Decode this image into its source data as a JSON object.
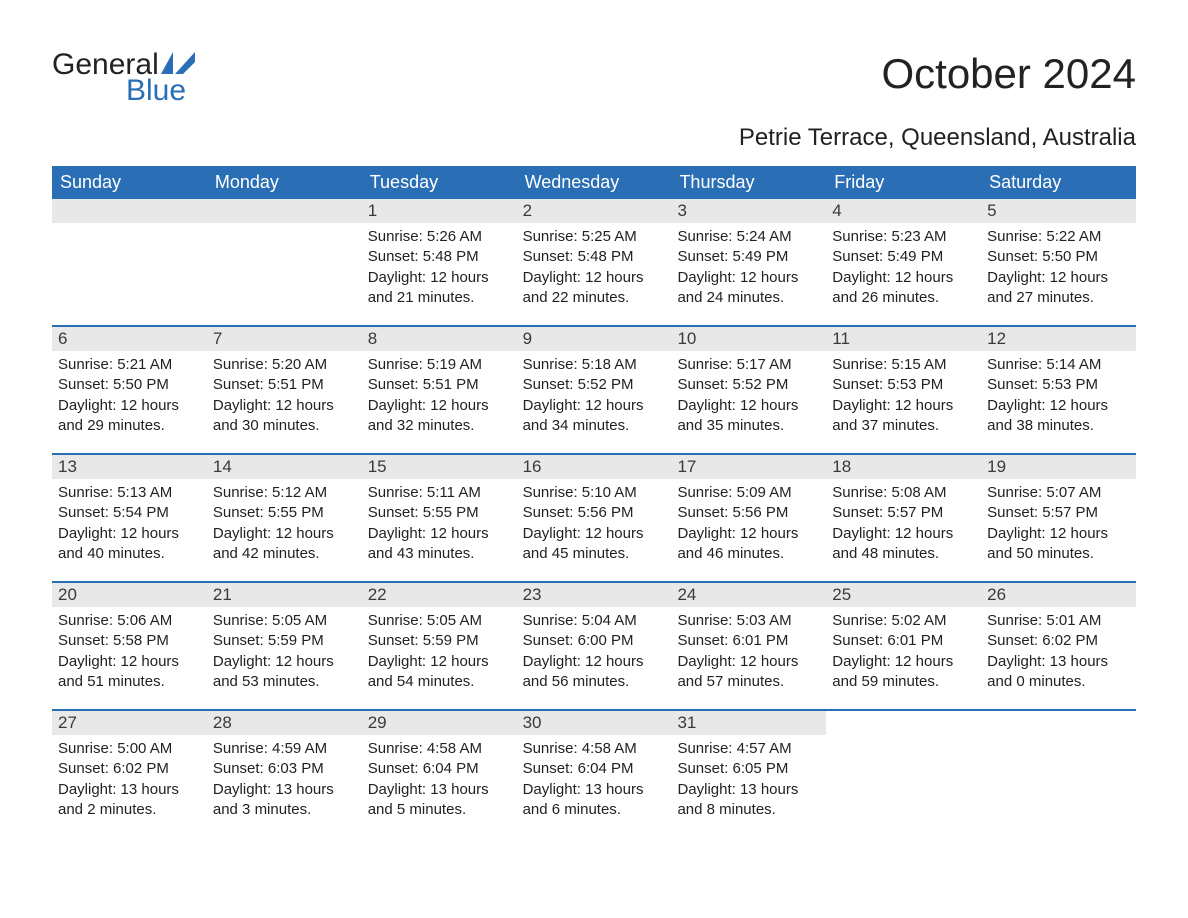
{
  "logo": {
    "line1": "General",
    "line2": "Blue"
  },
  "title": "October 2024",
  "subtitle": "Petrie Terrace, Queensland, Australia",
  "weekdays": [
    "Sunday",
    "Monday",
    "Tuesday",
    "Wednesday",
    "Thursday",
    "Friday",
    "Saturday"
  ],
  "colors": {
    "header_bg": "#2a6fb5",
    "header_text": "#ffffff",
    "daynum_bg": "#e8e8e8",
    "week_border": "#2a6fb5",
    "logo_blue": "#2a6fb5",
    "text": "#222222"
  },
  "calendar": {
    "type": "table",
    "weeks": [
      [
        {
          "day": "",
          "sunrise": "",
          "sunset": "",
          "daylight1": "",
          "daylight2": ""
        },
        {
          "day": "",
          "sunrise": "",
          "sunset": "",
          "daylight1": "",
          "daylight2": ""
        },
        {
          "day": "1",
          "sunrise": "Sunrise: 5:26 AM",
          "sunset": "Sunset: 5:48 PM",
          "daylight1": "Daylight: 12 hours",
          "daylight2": "and 21 minutes."
        },
        {
          "day": "2",
          "sunrise": "Sunrise: 5:25 AM",
          "sunset": "Sunset: 5:48 PM",
          "daylight1": "Daylight: 12 hours",
          "daylight2": "and 22 minutes."
        },
        {
          "day": "3",
          "sunrise": "Sunrise: 5:24 AM",
          "sunset": "Sunset: 5:49 PM",
          "daylight1": "Daylight: 12 hours",
          "daylight2": "and 24 minutes."
        },
        {
          "day": "4",
          "sunrise": "Sunrise: 5:23 AM",
          "sunset": "Sunset: 5:49 PM",
          "daylight1": "Daylight: 12 hours",
          "daylight2": "and 26 minutes."
        },
        {
          "day": "5",
          "sunrise": "Sunrise: 5:22 AM",
          "sunset": "Sunset: 5:50 PM",
          "daylight1": "Daylight: 12 hours",
          "daylight2": "and 27 minutes."
        }
      ],
      [
        {
          "day": "6",
          "sunrise": "Sunrise: 5:21 AM",
          "sunset": "Sunset: 5:50 PM",
          "daylight1": "Daylight: 12 hours",
          "daylight2": "and 29 minutes."
        },
        {
          "day": "7",
          "sunrise": "Sunrise: 5:20 AM",
          "sunset": "Sunset: 5:51 PM",
          "daylight1": "Daylight: 12 hours",
          "daylight2": "and 30 minutes."
        },
        {
          "day": "8",
          "sunrise": "Sunrise: 5:19 AM",
          "sunset": "Sunset: 5:51 PM",
          "daylight1": "Daylight: 12 hours",
          "daylight2": "and 32 minutes."
        },
        {
          "day": "9",
          "sunrise": "Sunrise: 5:18 AM",
          "sunset": "Sunset: 5:52 PM",
          "daylight1": "Daylight: 12 hours",
          "daylight2": "and 34 minutes."
        },
        {
          "day": "10",
          "sunrise": "Sunrise: 5:17 AM",
          "sunset": "Sunset: 5:52 PM",
          "daylight1": "Daylight: 12 hours",
          "daylight2": "and 35 minutes."
        },
        {
          "day": "11",
          "sunrise": "Sunrise: 5:15 AM",
          "sunset": "Sunset: 5:53 PM",
          "daylight1": "Daylight: 12 hours",
          "daylight2": "and 37 minutes."
        },
        {
          "day": "12",
          "sunrise": "Sunrise: 5:14 AM",
          "sunset": "Sunset: 5:53 PM",
          "daylight1": "Daylight: 12 hours",
          "daylight2": "and 38 minutes."
        }
      ],
      [
        {
          "day": "13",
          "sunrise": "Sunrise: 5:13 AM",
          "sunset": "Sunset: 5:54 PM",
          "daylight1": "Daylight: 12 hours",
          "daylight2": "and 40 minutes."
        },
        {
          "day": "14",
          "sunrise": "Sunrise: 5:12 AM",
          "sunset": "Sunset: 5:55 PM",
          "daylight1": "Daylight: 12 hours",
          "daylight2": "and 42 minutes."
        },
        {
          "day": "15",
          "sunrise": "Sunrise: 5:11 AM",
          "sunset": "Sunset: 5:55 PM",
          "daylight1": "Daylight: 12 hours",
          "daylight2": "and 43 minutes."
        },
        {
          "day": "16",
          "sunrise": "Sunrise: 5:10 AM",
          "sunset": "Sunset: 5:56 PM",
          "daylight1": "Daylight: 12 hours",
          "daylight2": "and 45 minutes."
        },
        {
          "day": "17",
          "sunrise": "Sunrise: 5:09 AM",
          "sunset": "Sunset: 5:56 PM",
          "daylight1": "Daylight: 12 hours",
          "daylight2": "and 46 minutes."
        },
        {
          "day": "18",
          "sunrise": "Sunrise: 5:08 AM",
          "sunset": "Sunset: 5:57 PM",
          "daylight1": "Daylight: 12 hours",
          "daylight2": "and 48 minutes."
        },
        {
          "day": "19",
          "sunrise": "Sunrise: 5:07 AM",
          "sunset": "Sunset: 5:57 PM",
          "daylight1": "Daylight: 12 hours",
          "daylight2": "and 50 minutes."
        }
      ],
      [
        {
          "day": "20",
          "sunrise": "Sunrise: 5:06 AM",
          "sunset": "Sunset: 5:58 PM",
          "daylight1": "Daylight: 12 hours",
          "daylight2": "and 51 minutes."
        },
        {
          "day": "21",
          "sunrise": "Sunrise: 5:05 AM",
          "sunset": "Sunset: 5:59 PM",
          "daylight1": "Daylight: 12 hours",
          "daylight2": "and 53 minutes."
        },
        {
          "day": "22",
          "sunrise": "Sunrise: 5:05 AM",
          "sunset": "Sunset: 5:59 PM",
          "daylight1": "Daylight: 12 hours",
          "daylight2": "and 54 minutes."
        },
        {
          "day": "23",
          "sunrise": "Sunrise: 5:04 AM",
          "sunset": "Sunset: 6:00 PM",
          "daylight1": "Daylight: 12 hours",
          "daylight2": "and 56 minutes."
        },
        {
          "day": "24",
          "sunrise": "Sunrise: 5:03 AM",
          "sunset": "Sunset: 6:01 PM",
          "daylight1": "Daylight: 12 hours",
          "daylight2": "and 57 minutes."
        },
        {
          "day": "25",
          "sunrise": "Sunrise: 5:02 AM",
          "sunset": "Sunset: 6:01 PM",
          "daylight1": "Daylight: 12 hours",
          "daylight2": "and 59 minutes."
        },
        {
          "day": "26",
          "sunrise": "Sunrise: 5:01 AM",
          "sunset": "Sunset: 6:02 PM",
          "daylight1": "Daylight: 13 hours",
          "daylight2": "and 0 minutes."
        }
      ],
      [
        {
          "day": "27",
          "sunrise": "Sunrise: 5:00 AM",
          "sunset": "Sunset: 6:02 PM",
          "daylight1": "Daylight: 13 hours",
          "daylight2": "and 2 minutes."
        },
        {
          "day": "28",
          "sunrise": "Sunrise: 4:59 AM",
          "sunset": "Sunset: 6:03 PM",
          "daylight1": "Daylight: 13 hours",
          "daylight2": "and 3 minutes."
        },
        {
          "day": "29",
          "sunrise": "Sunrise: 4:58 AM",
          "sunset": "Sunset: 6:04 PM",
          "daylight1": "Daylight: 13 hours",
          "daylight2": "and 5 minutes."
        },
        {
          "day": "30",
          "sunrise": "Sunrise: 4:58 AM",
          "sunset": "Sunset: 6:04 PM",
          "daylight1": "Daylight: 13 hours",
          "daylight2": "and 6 minutes."
        },
        {
          "day": "31",
          "sunrise": "Sunrise: 4:57 AM",
          "sunset": "Sunset: 6:05 PM",
          "daylight1": "Daylight: 13 hours",
          "daylight2": "and 8 minutes."
        },
        {
          "day": "",
          "sunrise": "",
          "sunset": "",
          "daylight1": "",
          "daylight2": ""
        },
        {
          "day": "",
          "sunrise": "",
          "sunset": "",
          "daylight1": "",
          "daylight2": ""
        }
      ]
    ]
  }
}
